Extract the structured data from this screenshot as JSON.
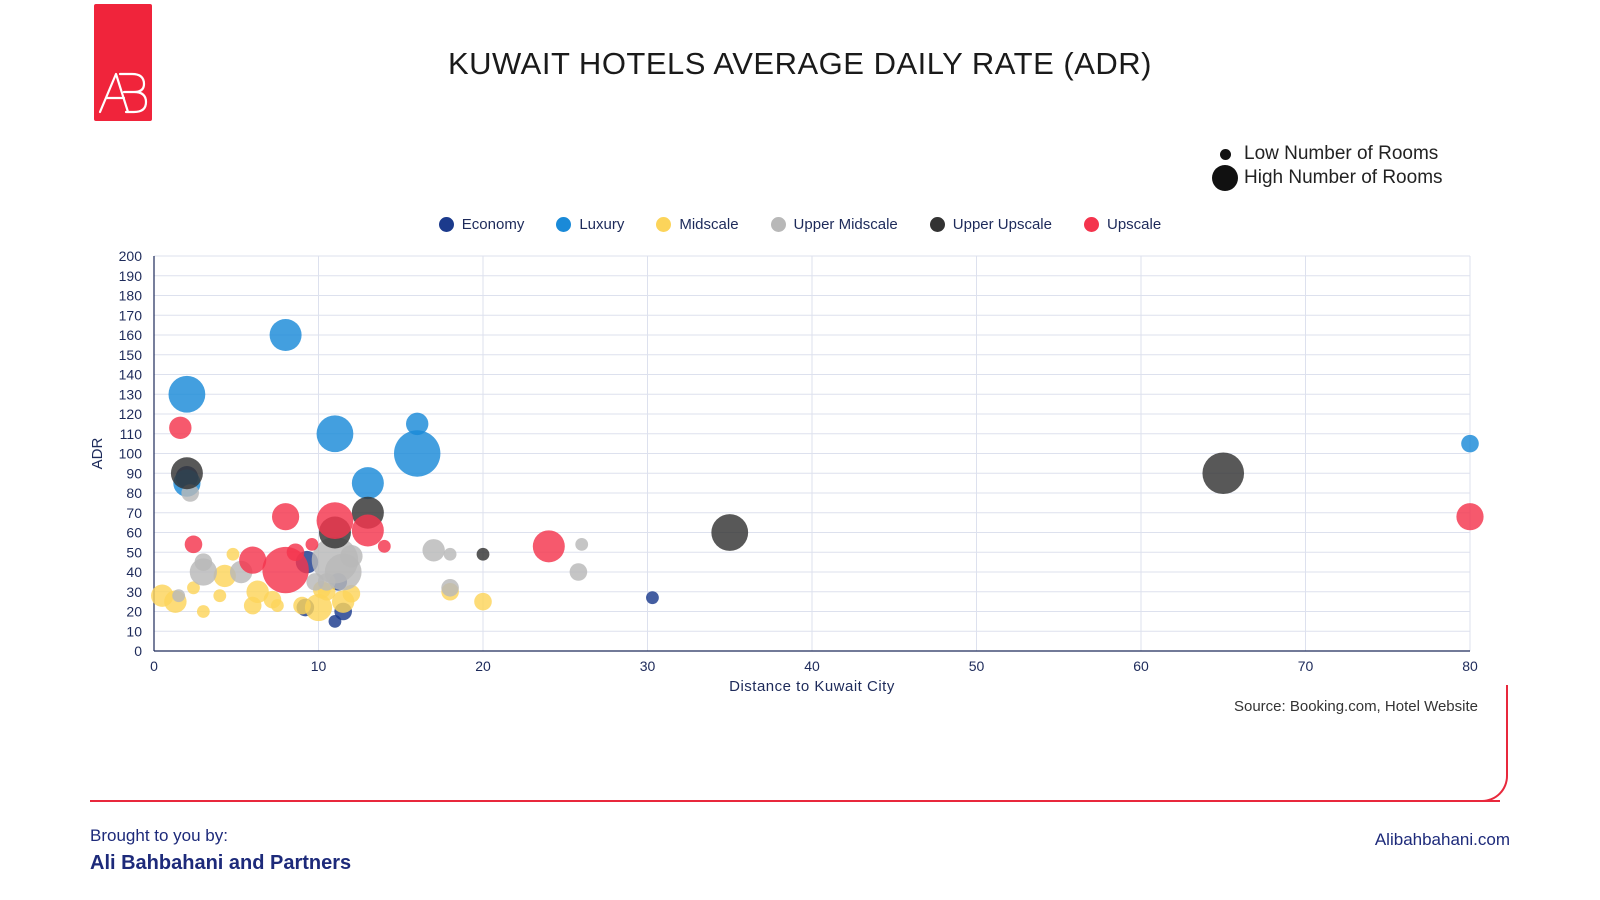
{
  "brand": {
    "logo_text": "AB",
    "accent_color": "#f0243b"
  },
  "title": "KUWAIT HOTELS AVERAGE DAILY RATE (ADR)",
  "size_legend": {
    "low_label": "Low Number of Rooms",
    "high_label": "High Number of Rooms"
  },
  "source": "Source: Booking.com, Hotel Website",
  "footer": {
    "intro": "Brought to you by:",
    "company": "Ali Bahbahani and Partners",
    "website": "Alibahbahani.com"
  },
  "chart_data": {
    "type": "scatter",
    "bubble": true,
    "title": "KUWAIT HOTELS AVERAGE DAILY RATE (ADR)",
    "xlabel": "Distance to Kuwait City",
    "ylabel": "ADR",
    "xlim": [
      0,
      80
    ],
    "ylim": [
      0,
      200
    ],
    "x_ticks": [
      0,
      10,
      20,
      30,
      40,
      50,
      60,
      70,
      80
    ],
    "y_ticks": [
      0,
      10,
      20,
      30,
      40,
      50,
      60,
      70,
      80,
      90,
      100,
      110,
      120,
      130,
      140,
      150,
      160,
      170,
      180,
      190,
      200
    ],
    "grid": true,
    "legend_position": "top-center",
    "size_meaning": "Number of Rooms",
    "series": [
      {
        "name": "Economy",
        "color": "#1b3a8c",
        "points": [
          {
            "x": 9.2,
            "y": 22,
            "size": 2
          },
          {
            "x": 9.3,
            "y": 45,
            "size": 3
          },
          {
            "x": 11.2,
            "y": 35,
            "size": 2
          },
          {
            "x": 11.5,
            "y": 20,
            "size": 2
          },
          {
            "x": 11.0,
            "y": 15,
            "size": 1
          },
          {
            "x": 30.3,
            "y": 27,
            "size": 1
          },
          {
            "x": 2.0,
            "y": 88,
            "size": 3
          }
        ]
      },
      {
        "name": "Luxury",
        "color": "#1a8ad8",
        "points": [
          {
            "x": 8.0,
            "y": 160,
            "size": 5
          },
          {
            "x": 2.0,
            "y": 130,
            "size": 6
          },
          {
            "x": 11.0,
            "y": 110,
            "size": 6
          },
          {
            "x": 16.0,
            "y": 100,
            "size": 8
          },
          {
            "x": 16.0,
            "y": 115,
            "size": 3
          },
          {
            "x": 13.0,
            "y": 85,
            "size": 5
          },
          {
            "x": 2.0,
            "y": 85,
            "size": 4
          },
          {
            "x": 80.0,
            "y": 105,
            "size": 2
          }
        ]
      },
      {
        "name": "Midscale",
        "color": "#fcd45a",
        "points": [
          {
            "x": 0.5,
            "y": 28,
            "size": 3
          },
          {
            "x": 1.3,
            "y": 25,
            "size": 3
          },
          {
            "x": 2.4,
            "y": 32,
            "size": 1
          },
          {
            "x": 3.0,
            "y": 20,
            "size": 1
          },
          {
            "x": 4.0,
            "y": 28,
            "size": 1
          },
          {
            "x": 4.3,
            "y": 38,
            "size": 3
          },
          {
            "x": 4.8,
            "y": 49,
            "size": 1
          },
          {
            "x": 6.0,
            "y": 23,
            "size": 2
          },
          {
            "x": 6.3,
            "y": 30,
            "size": 3
          },
          {
            "x": 7.2,
            "y": 26,
            "size": 2
          },
          {
            "x": 7.5,
            "y": 23,
            "size": 1
          },
          {
            "x": 9.0,
            "y": 23,
            "size": 2
          },
          {
            "x": 10.0,
            "y": 22,
            "size": 4
          },
          {
            "x": 10.2,
            "y": 31,
            "size": 2
          },
          {
            "x": 10.5,
            "y": 30,
            "size": 2
          },
          {
            "x": 11.5,
            "y": 25,
            "size": 3
          },
          {
            "x": 12.0,
            "y": 29,
            "size": 2
          },
          {
            "x": 18.0,
            "y": 30,
            "size": 2
          },
          {
            "x": 20.0,
            "y": 25,
            "size": 2
          }
        ]
      },
      {
        "name": "Upper Midscale",
        "color": "#b8b8b8",
        "points": [
          {
            "x": 1.5,
            "y": 28,
            "size": 1
          },
          {
            "x": 2.2,
            "y": 80,
            "size": 2
          },
          {
            "x": 3.0,
            "y": 40,
            "size": 4
          },
          {
            "x": 3.0,
            "y": 45,
            "size": 2
          },
          {
            "x": 5.3,
            "y": 40,
            "size": 3
          },
          {
            "x": 9.8,
            "y": 35,
            "size": 2
          },
          {
            "x": 10.5,
            "y": 35,
            "size": 2
          },
          {
            "x": 11.0,
            "y": 46,
            "size": 8
          },
          {
            "x": 11.5,
            "y": 40,
            "size": 6
          },
          {
            "x": 12.0,
            "y": 48,
            "size": 3
          },
          {
            "x": 17.0,
            "y": 51,
            "size": 3
          },
          {
            "x": 18.0,
            "y": 32,
            "size": 2
          },
          {
            "x": 18.0,
            "y": 49,
            "size": 1
          },
          {
            "x": 25.8,
            "y": 40,
            "size": 2
          },
          {
            "x": 26.0,
            "y": 54,
            "size": 1
          }
        ]
      },
      {
        "name": "Upper Upscale",
        "color": "#333333",
        "points": [
          {
            "x": 2.0,
            "y": 90,
            "size": 5
          },
          {
            "x": 11.0,
            "y": 60,
            "size": 5
          },
          {
            "x": 13.0,
            "y": 70,
            "size": 5
          },
          {
            "x": 20.0,
            "y": 49,
            "size": 1
          },
          {
            "x": 35.0,
            "y": 60,
            "size": 6
          },
          {
            "x": 65.0,
            "y": 90,
            "size": 7
          }
        ]
      },
      {
        "name": "Upscale",
        "color": "#f4344d",
        "points": [
          {
            "x": 1.6,
            "y": 113,
            "size": 3
          },
          {
            "x": 2.4,
            "y": 54,
            "size": 2
          },
          {
            "x": 6.0,
            "y": 46,
            "size": 4
          },
          {
            "x": 8.0,
            "y": 68,
            "size": 4
          },
          {
            "x": 8.0,
            "y": 41,
            "size": 8
          },
          {
            "x": 8.6,
            "y": 50,
            "size": 2
          },
          {
            "x": 9.6,
            "y": 54,
            "size": 1
          },
          {
            "x": 11.0,
            "y": 66,
            "size": 6
          },
          {
            "x": 13.0,
            "y": 61,
            "size": 5
          },
          {
            "x": 14.0,
            "y": 53,
            "size": 1
          },
          {
            "x": 24.0,
            "y": 53,
            "size": 5
          },
          {
            "x": 80.0,
            "y": 68,
            "size": 4
          }
        ]
      }
    ]
  }
}
